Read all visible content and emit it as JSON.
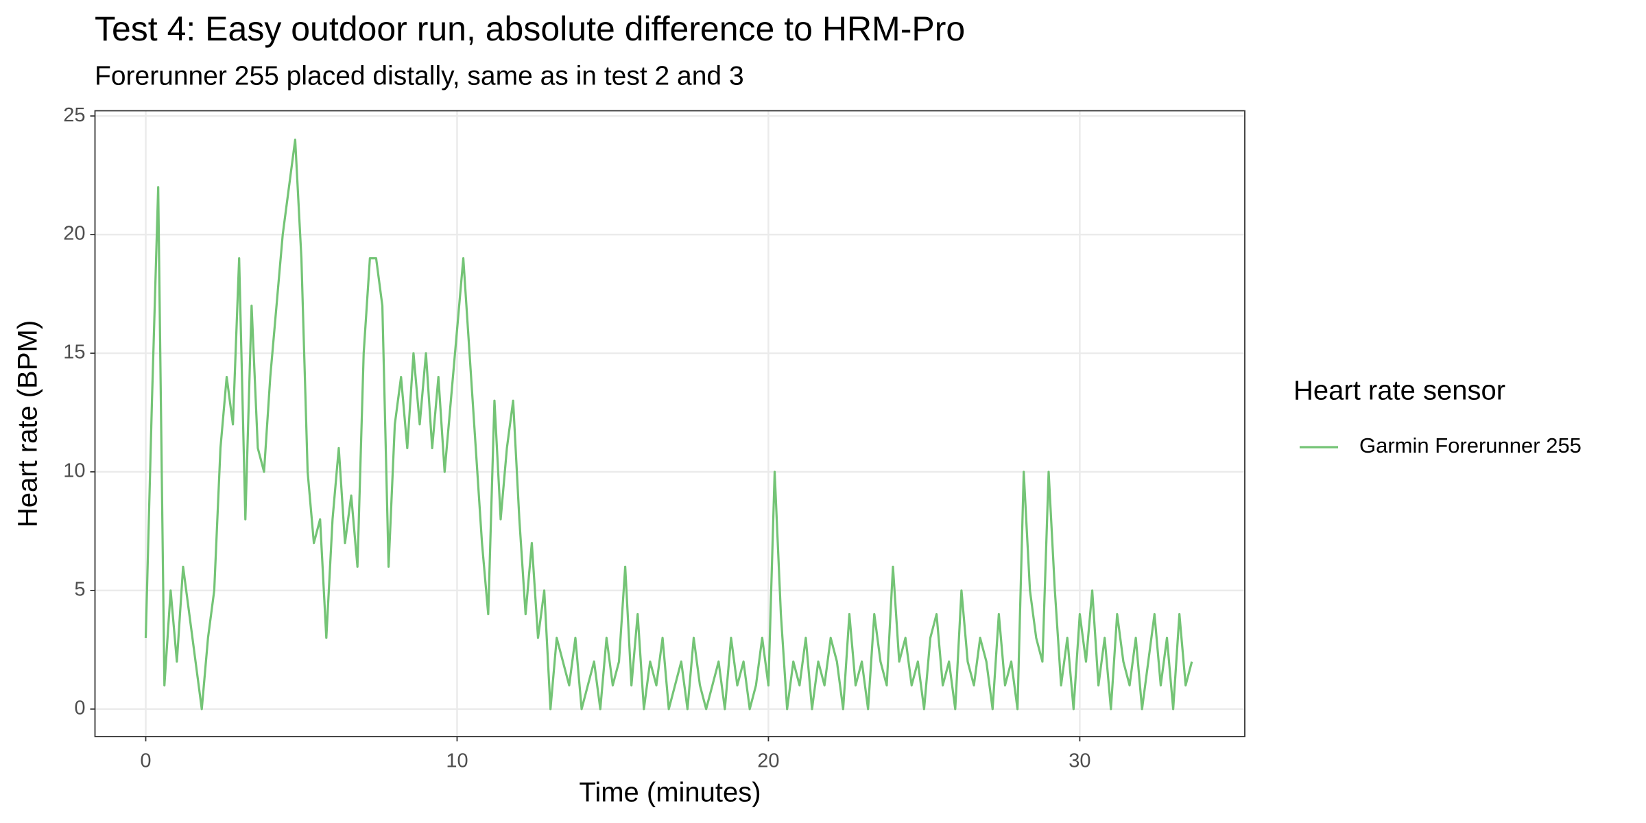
{
  "chart_data": {
    "type": "line",
    "title": "Test 4: Easy outdoor run, absolute difference to HRM-Pro",
    "subtitle": "Forerunner 255 placed distally, same as in test 2 and 3",
    "x_label": "Time (minutes)",
    "y_label": "Heart rate (BPM)",
    "legend_title": "Heart rate sensor",
    "legend": "right",
    "grid": true,
    "xlim": [
      -1.63,
      35.3
    ],
    "xticks": [
      0,
      10,
      20,
      30
    ],
    "ylim": [
      -1.16,
      25.22
    ],
    "yticks": [
      0,
      5,
      10,
      15,
      20,
      25
    ],
    "x": [
      0,
      0.2,
      0.4,
      0.6,
      0.8,
      1,
      1.2,
      1.4,
      1.6,
      1.8,
      2,
      2.2,
      2.4,
      2.6,
      2.8,
      3,
      3.2,
      3.4,
      3.6,
      3.8,
      4,
      4.2,
      4.4,
      4.6,
      4.8,
      5,
      5.2,
      5.4,
      5.6,
      5.8,
      6,
      6.2,
      6.4,
      6.6,
      6.8,
      7,
      7.2,
      7.4,
      7.6,
      7.8,
      8,
      8.2,
      8.4,
      8.6,
      8.8,
      9,
      9.2,
      9.4,
      9.6,
      9.8,
      10,
      10.2,
      10.4,
      10.6,
      10.8,
      11,
      11.2,
      11.4,
      11.6,
      11.8,
      12,
      12.2,
      12.4,
      12.6,
      12.8,
      13,
      13.2,
      13.4,
      13.6,
      13.8,
      14,
      14.2,
      14.4,
      14.6,
      14.8,
      15,
      15.2,
      15.4,
      15.6,
      15.8,
      16,
      16.2,
      16.4,
      16.6,
      16.8,
      17,
      17.2,
      17.4,
      17.6,
      17.8,
      18,
      18.2,
      18.4,
      18.6,
      18.8,
      19,
      19.2,
      19.4,
      19.6,
      19.8,
      20,
      20.2,
      20.4,
      20.6,
      20.8,
      21,
      21.2,
      21.4,
      21.6,
      21.8,
      22,
      22.2,
      22.4,
      22.6,
      22.8,
      23,
      23.2,
      23.4,
      23.6,
      23.8,
      24,
      24.2,
      24.4,
      24.6,
      24.8,
      25,
      25.2,
      25.4,
      25.6,
      25.8,
      26,
      26.2,
      26.4,
      26.6,
      26.8,
      27,
      27.2,
      27.4,
      27.6,
      27.8,
      28,
      28.2,
      28.4,
      28.6,
      28.8,
      29,
      29.2,
      29.4,
      29.6,
      29.8,
      30,
      30.2,
      30.4,
      30.6,
      30.8,
      31,
      31.2,
      31.4,
      31.6,
      31.8,
      32,
      32.2,
      32.4,
      32.6,
      32.8,
      33,
      33.2,
      33.4,
      33.6
    ],
    "series": [
      {
        "name": "Garmin Forerunner 255",
        "color": "#74c476",
        "values": [
          3,
          13,
          22,
          1,
          5,
          2,
          6,
          4,
          2,
          0,
          3,
          5,
          11,
          14,
          12,
          19,
          8,
          17,
          11,
          10,
          14,
          17,
          20,
          22,
          24,
          19,
          10,
          7,
          8,
          3,
          8,
          11,
          7,
          9,
          6,
          15,
          19,
          19,
          17,
          6,
          12,
          14,
          11,
          15,
          12,
          15,
          11,
          14,
          10,
          13,
          16,
          19,
          15,
          11,
          7,
          4,
          13,
          8,
          11,
          13,
          8,
          4,
          7,
          3,
          5,
          0,
          3,
          2,
          1,
          3,
          0,
          1,
          2,
          0,
          3,
          1,
          2,
          6,
          1,
          4,
          0,
          2,
          1,
          3,
          0,
          1,
          2,
          0,
          3,
          1,
          0,
          1,
          2,
          0,
          3,
          1,
          2,
          0,
          1,
          3,
          1,
          10,
          4,
          0,
          2,
          1,
          3,
          0,
          2,
          1,
          3,
          2,
          0,
          4,
          1,
          2,
          0,
          4,
          2,
          1,
          6,
          2,
          3,
          1,
          2,
          0,
          3,
          4,
          1,
          2,
          0,
          5,
          2,
          1,
          3,
          2,
          0,
          4,
          1,
          2,
          0,
          10,
          5,
          3,
          2,
          10,
          5,
          1,
          3,
          0,
          4,
          2,
          5,
          1,
          3,
          0,
          4,
          2,
          1,
          3,
          0,
          2,
          4,
          1,
          3,
          0,
          4,
          1,
          2
        ]
      }
    ]
  }
}
